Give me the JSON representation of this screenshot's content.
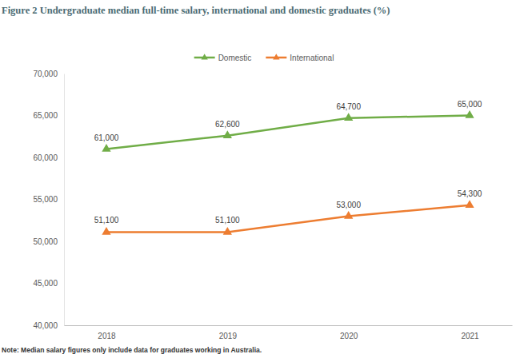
{
  "chart_data": {
    "type": "line",
    "title": "Figure 2 Undergraduate median full-time salary, international and domestic graduates (%)",
    "note": "Note: Median salary figures only include data for graduates working in Australia.",
    "categories": [
      "2018",
      "2019",
      "2020",
      "2021"
    ],
    "series": [
      {
        "name": "Domestic",
        "color": "#70ad47",
        "marker": "triangle",
        "values": [
          61000,
          62600,
          64700,
          65000
        ],
        "value_labels": [
          "61,000",
          "62,600",
          "64,700",
          "65,000"
        ]
      },
      {
        "name": "International",
        "color": "#ed7d31",
        "marker": "triangle",
        "values": [
          51100,
          51100,
          53000,
          54300
        ],
        "value_labels": [
          "51,100",
          "51,100",
          "53,000",
          "54,300"
        ]
      }
    ],
    "ylim": [
      40000,
      70000
    ],
    "yticks": [
      {
        "value": 40000,
        "label": "40,000"
      },
      {
        "value": 45000,
        "label": "45,000"
      },
      {
        "value": 50000,
        "label": "50,000"
      },
      {
        "value": 55000,
        "label": "55,000"
      },
      {
        "value": 60000,
        "label": "60,000"
      },
      {
        "value": 65000,
        "label": "65,000"
      },
      {
        "value": 70000,
        "label": "70,000"
      }
    ],
    "grid": false,
    "legend": "top",
    "data_labels": true
  }
}
